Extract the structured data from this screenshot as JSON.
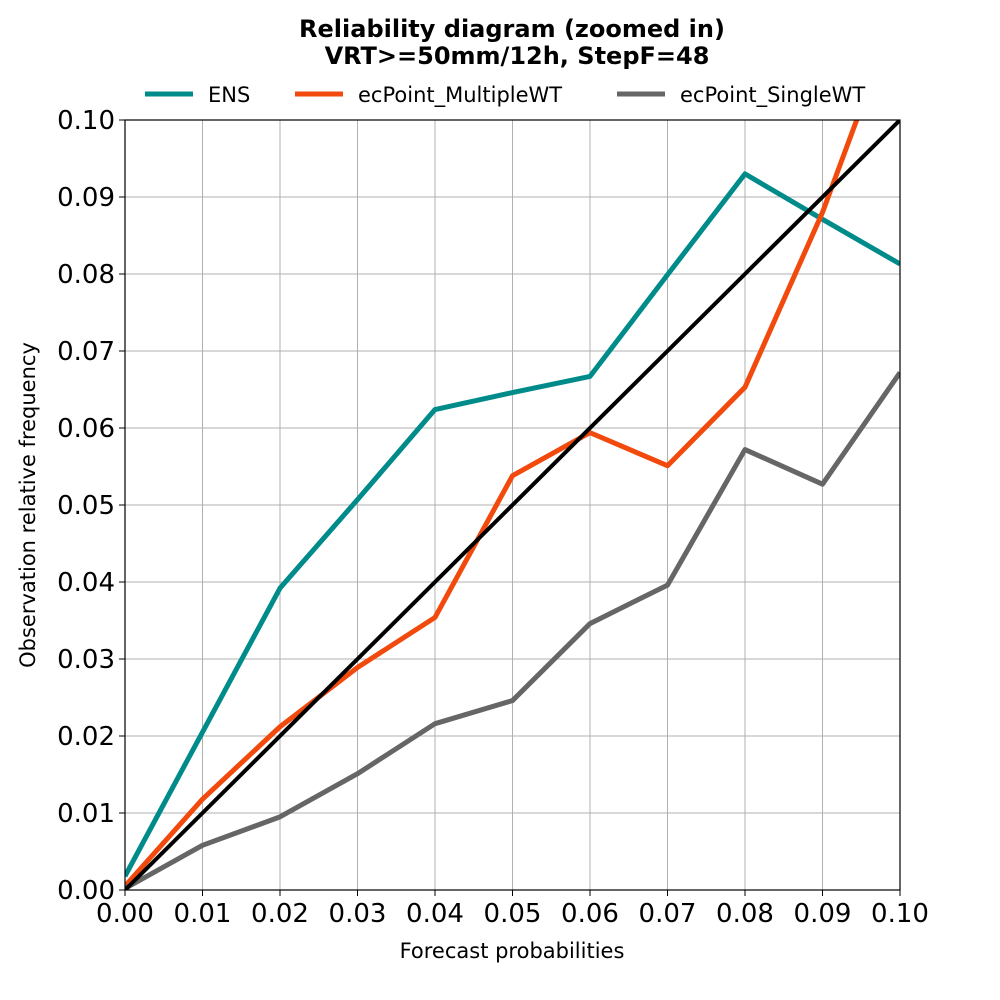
{
  "chart_data": {
    "type": "line",
    "title": "Reliability diagram (zoomed in)",
    "subtitle": "VRT>=50mm/12h, StepF=48",
    "xlabel": "Forecast probabilities",
    "ylabel": "Observation relative frequency",
    "xlim": [
      0,
      0.1
    ],
    "ylim": [
      0,
      0.1
    ],
    "xticks": [
      "0.00",
      "0.01",
      "0.02",
      "0.03",
      "0.04",
      "0.05",
      "0.06",
      "0.07",
      "0.08",
      "0.09",
      "0.10"
    ],
    "yticks": [
      "0.00",
      "0.01",
      "0.02",
      "0.03",
      "0.04",
      "0.05",
      "0.06",
      "0.07",
      "0.08",
      "0.09",
      "0.10"
    ],
    "grid": true,
    "legend_position": "top",
    "series": [
      {
        "name": "ENS",
        "color": "#008B8B",
        "x": [
          0.0,
          0.01,
          0.02,
          0.03,
          0.04,
          0.05,
          0.06,
          0.07,
          0.08,
          0.09,
          0.1
        ],
        "y": [
          0.0018,
          0.0205,
          0.0392,
          0.0507,
          0.0624,
          0.0646,
          0.0667,
          0.0799,
          0.093,
          0.0871,
          0.0813
        ]
      },
      {
        "name": "ecPoint_MultipleWT",
        "color": "#F24A0D",
        "x": [
          0.0,
          0.01,
          0.02,
          0.03,
          0.04,
          0.05,
          0.06,
          0.07,
          0.08,
          0.09,
          0.1
        ],
        "y": [
          0.0005,
          0.0118,
          0.0212,
          0.0289,
          0.0354,
          0.0538,
          0.0594,
          0.0551,
          0.0653,
          0.088,
          0.1152
        ]
      },
      {
        "name": "ecPoint_SingleWT",
        "color": "#666666",
        "x": [
          0.0,
          0.01,
          0.02,
          0.03,
          0.04,
          0.05,
          0.06,
          0.07,
          0.08,
          0.09,
          0.1
        ],
        "y": [
          0.0002,
          0.0058,
          0.0095,
          0.0151,
          0.0216,
          0.0246,
          0.0346,
          0.0396,
          0.0572,
          0.0527,
          0.0672
        ]
      }
    ],
    "reference_line": {
      "color": "#000000",
      "x": [
        0.0,
        0.1
      ],
      "y": [
        0.0,
        0.1
      ]
    }
  }
}
